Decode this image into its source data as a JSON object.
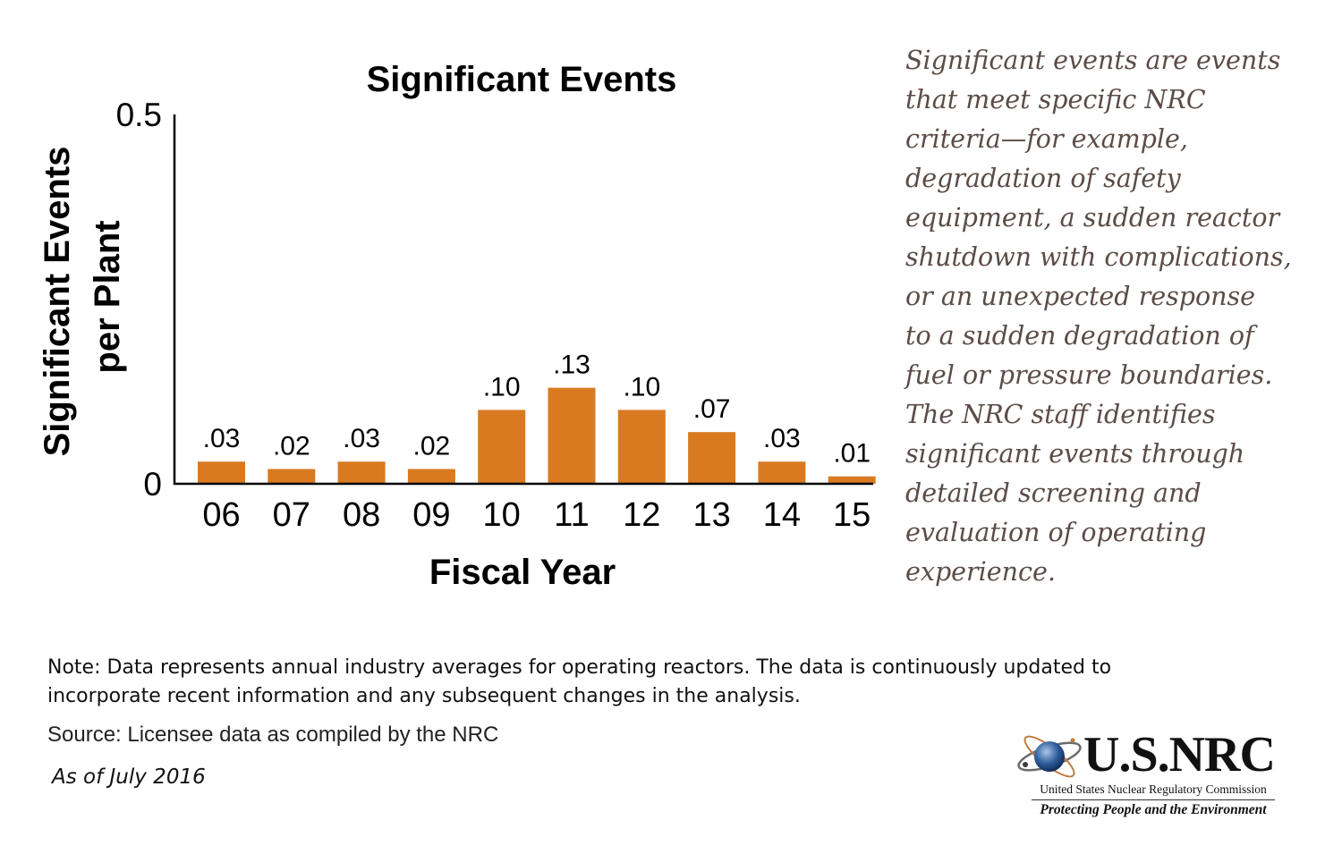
{
  "chart_data": {
    "type": "bar",
    "title": "Significant Events",
    "xlabel": "Fiscal Year",
    "ylabel": [
      "Significant Events",
      "per Plant"
    ],
    "ylim": [
      0,
      0.5
    ],
    "yticks": [
      0,
      0.5
    ],
    "ytick_labels": [
      "0",
      "0.5"
    ],
    "categories": [
      "06",
      "07",
      "08",
      "09",
      "10",
      "11",
      "12",
      "13",
      "14",
      "15"
    ],
    "values": [
      0.03,
      0.02,
      0.03,
      0.02,
      0.1,
      0.13,
      0.1,
      0.07,
      0.03,
      0.01
    ],
    "data_labels": [
      ".03",
      ".02",
      ".03",
      ".02",
      ".10",
      ".13",
      ".10",
      ".07",
      ".03",
      ".01"
    ],
    "grid": false,
    "bar_color": "#d97a21"
  },
  "description": {
    "lines": [
      "Significant events are events",
      "that meet specific NRC",
      "criteria—for example,",
      "degradation of safety",
      "equipment, a sudden reactor",
      "shutdown with complications,",
      "or an unexpected response",
      "to a sudden degradation of",
      "fuel or pressure boundaries.",
      "The NRC staff identifies",
      "significant events through",
      "detailed screening and",
      "evaluation of operating",
      "experience."
    ]
  },
  "footer": {
    "note": "Note: Data represents annual industry averages for operating reactors. The data is continuously updated to incorporate recent information and any subsequent changes in the analysis.",
    "source": "Source: Licensee data as compiled by the NRC",
    "as_of": "As of July 2016"
  },
  "logo": {
    "wordmark": "U.S.NRC",
    "subtitle": "United States Nuclear Regulatory Commission",
    "tagline": "Protecting People and the Environment"
  }
}
